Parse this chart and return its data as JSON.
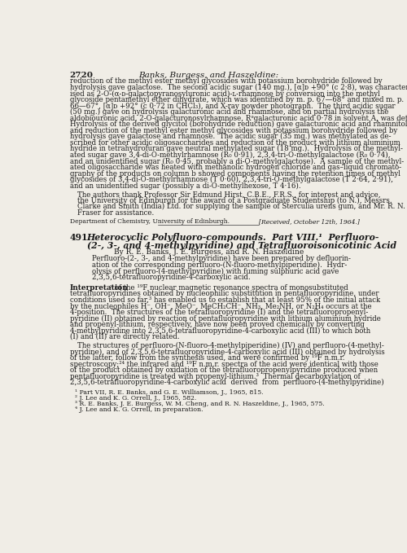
{
  "page_number": "2720",
  "header_text": "Banks, Burgess, and Haszeldine:",
  "background_color": "#f0ede6",
  "text_color": "#1a1a1a",
  "body_text_top": [
    "reduction of the methyl ester methyl glycosides with potassium borohydride followed by",
    "hydrolysis gave galactose.  The second acidic sugar (140 mg.), [α]ᴅ +90° (c 2·8), was character-",
    "ised as 2-O-(α-ᴅ-galactopyranosyluronic acid)-ʟ-rhamnose by conversion into the methyl",
    "glycoside pentamethyl ether dihydrate, which was identified by m. p. 67—68° and mixed m. p.",
    "66—67°, [α]ᴅ +92° (c 0·72 in CHCl₃), and X-ray powder photograph.  The third acidic sugar",
    "(50 mg.) gave on hydrolysis galacturonic acid and rhamnose, and on partial hydrolysis the",
    "aldobiouronic acid, 2-O-galacturonosylrhamnose, Rᵊgalacturonic acid 0·78 in solvent A, was detected.",
    "Hydrolysis of the derived glycitol (borohydride reduction) gave galacturonic acid and rhamnitol,",
    "and reduction of the methyl ester methyl glycosides with potassium borohydride followed by",
    "hydrolysis gave galactose and rhamnose.  The acidic sugar (35 mg.) was methylated as de-",
    "scribed for other acidic oligosaccharides and reduction of the product with lithium aluminium",
    "hydride in tetrahydrofuran gave neutral methylated sugar (18 mg.).  Hydrolysis of the methyl-",
    "ated sugar gave 3,4-di-O-methylrhamnose (R₀ 0·91), 2,3,4-tri-O-methylgalactose (R₀ 0·74),",
    "and an unidentified sugar (R₀ 0·45, probably a di-O-methylgalactose).  A sample of the methyl-",
    "ated oligosaccharide was heated with methanolic hydrogen chloride and gas–liquid chromato-",
    "graphy of the products on column b showed components having the retention times of methyl",
    "glycosides of 3,4-di-O-methylrhamnose (T 0·60), 2,3,4-tri-O-methylgalactose (T 2·64, 2·91),",
    "and an unidentified sugar (possibly a di-O-methylhexose, T 4·16)."
  ],
  "acknowledgement": [
    "The authors thank Professor Sir Edmund Hirst, C.B.E., F.R.S., for interest and advice,",
    "the University of Edinburgh for the award of a Postgraduate Studentship (to N.), Messrs.",
    "Clarke and Smith (India) Ltd. for supplying the sample of Sterculia urens gum, and Mr. R. N.",
    "Fraser for assistance."
  ],
  "department_line": "Department of Chemistry, University of Edinburgh.",
  "received_line": "[Received, October 12th, 1964.]",
  "article_number": "491.",
  "article_title_line1": "Heterocyclic Polyfluoro-compounds.  Part VIII.¹  Perfluoro-",
  "article_title_line2": "(2-, 3-, and 4-methylpyridine) and Tetrafluoroisonicotinic Acid",
  "byline": "By R. E. Banks, J. E. Burgess, and R. N. Haszeldine",
  "abstract": [
    "Perfluoro-(2-, 3-, and 4-methylpyridine) have been prepared by defluorin-",
    "ation of the corresponding perfluoro-(N-fluoro-methylpiperidine).  Hydr-",
    "olysis of perfluoro-(4-methylpyridine) with fuming sulphuric acid gave",
    "2,3,5,6-tetrafluoropyridine-4-carboxylic acid."
  ],
  "interpretation_body": [
    " of the ¹⁹F nuclear magnetic resonance spectra of monosubstituted",
    "tetrafluoropyridines obtained by nucleophilic substitution in pentafluoropyridine, under",
    "conditions used so far,³ has enabled us to establish that at least 95% of the initial attack",
    "by the nucleophiles H⁻, OH⁻, MeO⁻, MeCH₂CH⁻, NH₃, Me₂NH, or N₂H₄ occurs at the",
    "4-position.  The structures of the tetrafluoropyridine (I) and the tetrafluoropropenyl-",
    "pyridine (II) obtained by reaction of pentafluoropyridine with lithium aluminium hydride",
    "and propenyl-lithium, respectively, have now been proved chemically by converting",
    "4-methylpyridine into 2,3,5,6-tetrafluoropyridine-4-carboxylic acid (III) to which both",
    "(I) and (II) are directly related."
  ],
  "structures_paragraph": [
    "The structures of perfluoro-(N-fluoro-4-methylpiperidine) (IV) and perfluoro-(4-methyl-",
    "pyridine), and of 2,3,5,6-tetrafluoropyridine-4-carboxylic acid (III) obtained by hydrolysis",
    "of the latter, follow from the synthesis used, and were confirmed by ¹⁹F n.m.r.",
    "spectroscopy;²⁴ the infrared and ¹⁹F n.m.r. spectra of the acid were identical with those",
    "of the product obtained by oxidation of the tetrafluoropropenylpyridine produced when",
    "pentafluoropyridine is treated with propenyl-lithium.³  Thermal decarboxylation of",
    "2,3,5,6-tetrafluoropyridine-4-carboxylic acid  derived  from  perfluoro-(4-methylpyridine)"
  ],
  "footnotes": [
    "¹ Part VII, R. E. Banks, and G. E. Williamson, J., 1965, 815.",
    "² J. Lee and K. G. Orrell, J., 1965, 582.",
    "³ R. E. Banks, J. E. Burgess, W. M. Cheng, and R. N. Haszeldine, J., 1965, 575.",
    "⁴ J. Lee and K. G. Orrell, in preparation."
  ]
}
